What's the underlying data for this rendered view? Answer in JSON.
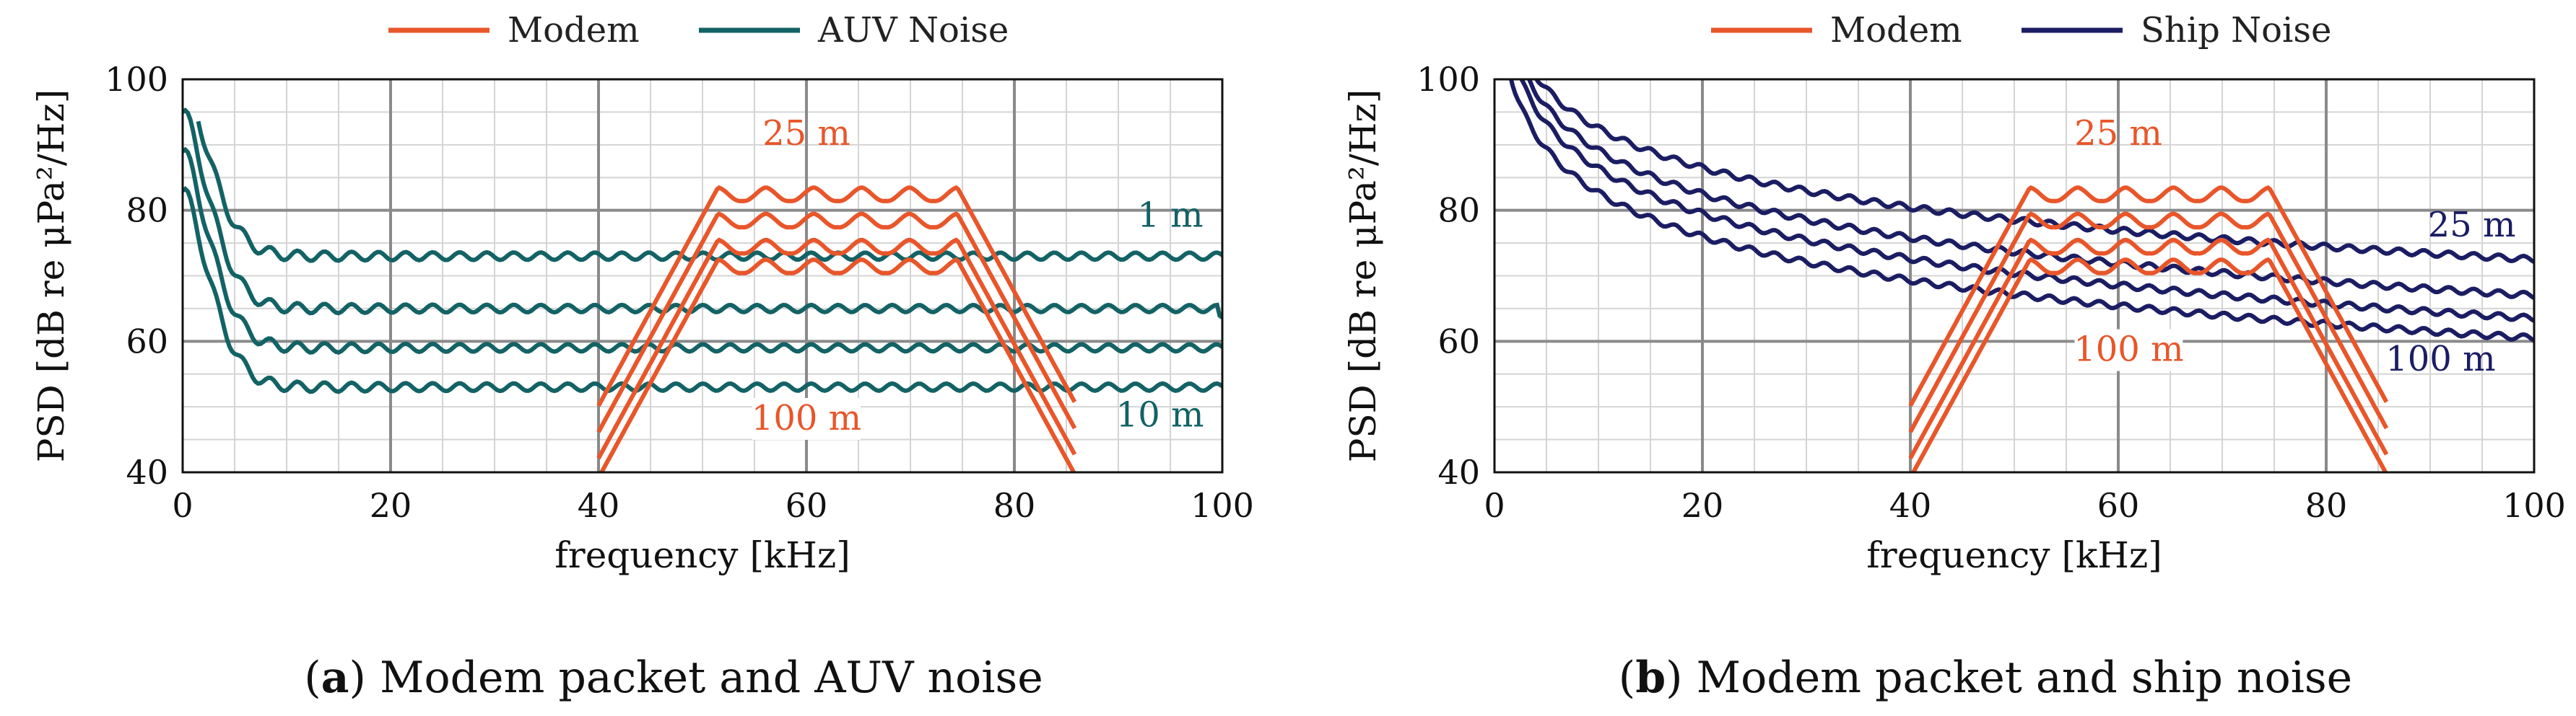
{
  "colors": {
    "modem": "#e8562a",
    "auv_noise": "#136265",
    "ship_noise": "#1b1d63"
  },
  "chart_data": [
    {
      "type": "line",
      "caption_letter": "a",
      "caption_text": "Modem packet and AUV noise",
      "xlabel": "frequency [kHz]",
      "ylabel": "PSD [dB re μPa²/Hz]",
      "xlim": [
        0,
        100
      ],
      "ylim": [
        40,
        100
      ],
      "xticks": [
        "0",
        "20",
        "40",
        "60",
        "80",
        "100"
      ],
      "yticks": [
        "40",
        "60",
        "80",
        "100"
      ],
      "grid": true,
      "legend_position": "top",
      "legend": [
        "Modem",
        "AUV Noise"
      ],
      "annotations": [
        {
          "text": "25 m",
          "series": "modem",
          "x": 60,
          "y": 90
        },
        {
          "text": "100 m",
          "series": "modem",
          "x": 60,
          "y": 46.5
        },
        {
          "text": "1 m",
          "series": "noise",
          "x": 95,
          "y": 77.5
        },
        {
          "text": "10 m",
          "series": "noise",
          "x": 94,
          "y": 47
        }
      ],
      "modem_series": [
        {
          "top_level": 83.5,
          "ripple": 2.3
        },
        {
          "top_level": 79.5,
          "ripple": 2.3
        },
        {
          "top_level": 75.5,
          "ripple": 2.3
        },
        {
          "top_level": 72.5,
          "ripple": 2.3
        }
      ],
      "noise_series": [
        {
          "start": 100,
          "plateau": 73,
          "x_min": 1.5
        },
        {
          "start": 95,
          "plateau": 65,
          "x_min": 0
        },
        {
          "start": 89,
          "plateau": 59,
          "x_min": 0
        },
        {
          "start": 83,
          "plateau": 53,
          "x_min": 0
        }
      ]
    },
    {
      "type": "line",
      "caption_letter": "b",
      "caption_text": "Modem packet and ship noise",
      "xlabel": "frequency [kHz]",
      "ylabel": "PSD [dB re μPa²/Hz]",
      "xlim": [
        0,
        100
      ],
      "ylim": [
        40,
        100
      ],
      "xticks": [
        "0",
        "20",
        "40",
        "60",
        "80",
        "100"
      ],
      "yticks": [
        "40",
        "60",
        "80",
        "100"
      ],
      "grid": true,
      "legend_position": "top",
      "legend": [
        "Modem",
        "Ship Noise"
      ],
      "annotations": [
        {
          "text": "25 m",
          "series": "modem",
          "x": 60,
          "y": 90
        },
        {
          "text": "100 m",
          "series": "modem",
          "x": 61,
          "y": 57
        },
        {
          "text": "25 m",
          "series": "noise",
          "x": 94,
          "y": 76
        },
        {
          "text": "100 m",
          "series": "noise",
          "x": 91,
          "y": 55.5
        }
      ],
      "modem_series": [
        {
          "top_level": 83.5,
          "ripple": 2.3
        },
        {
          "top_level": 79.5,
          "ripple": 2.3
        },
        {
          "top_level": 75.5,
          "ripple": 2.3
        },
        {
          "top_level": 72.5,
          "ripple": 2.3
        }
      ],
      "noise_series": [
        {
          "at_20kHz": 86.5,
          "at_100kHz": 72.5
        },
        {
          "at_20kHz": 82.5,
          "at_100kHz": 67
        },
        {
          "at_20kHz": 79.5,
          "at_100kHz": 63.5
        },
        {
          "at_20kHz": 76,
          "at_100kHz": 60.5
        }
      ]
    }
  ]
}
